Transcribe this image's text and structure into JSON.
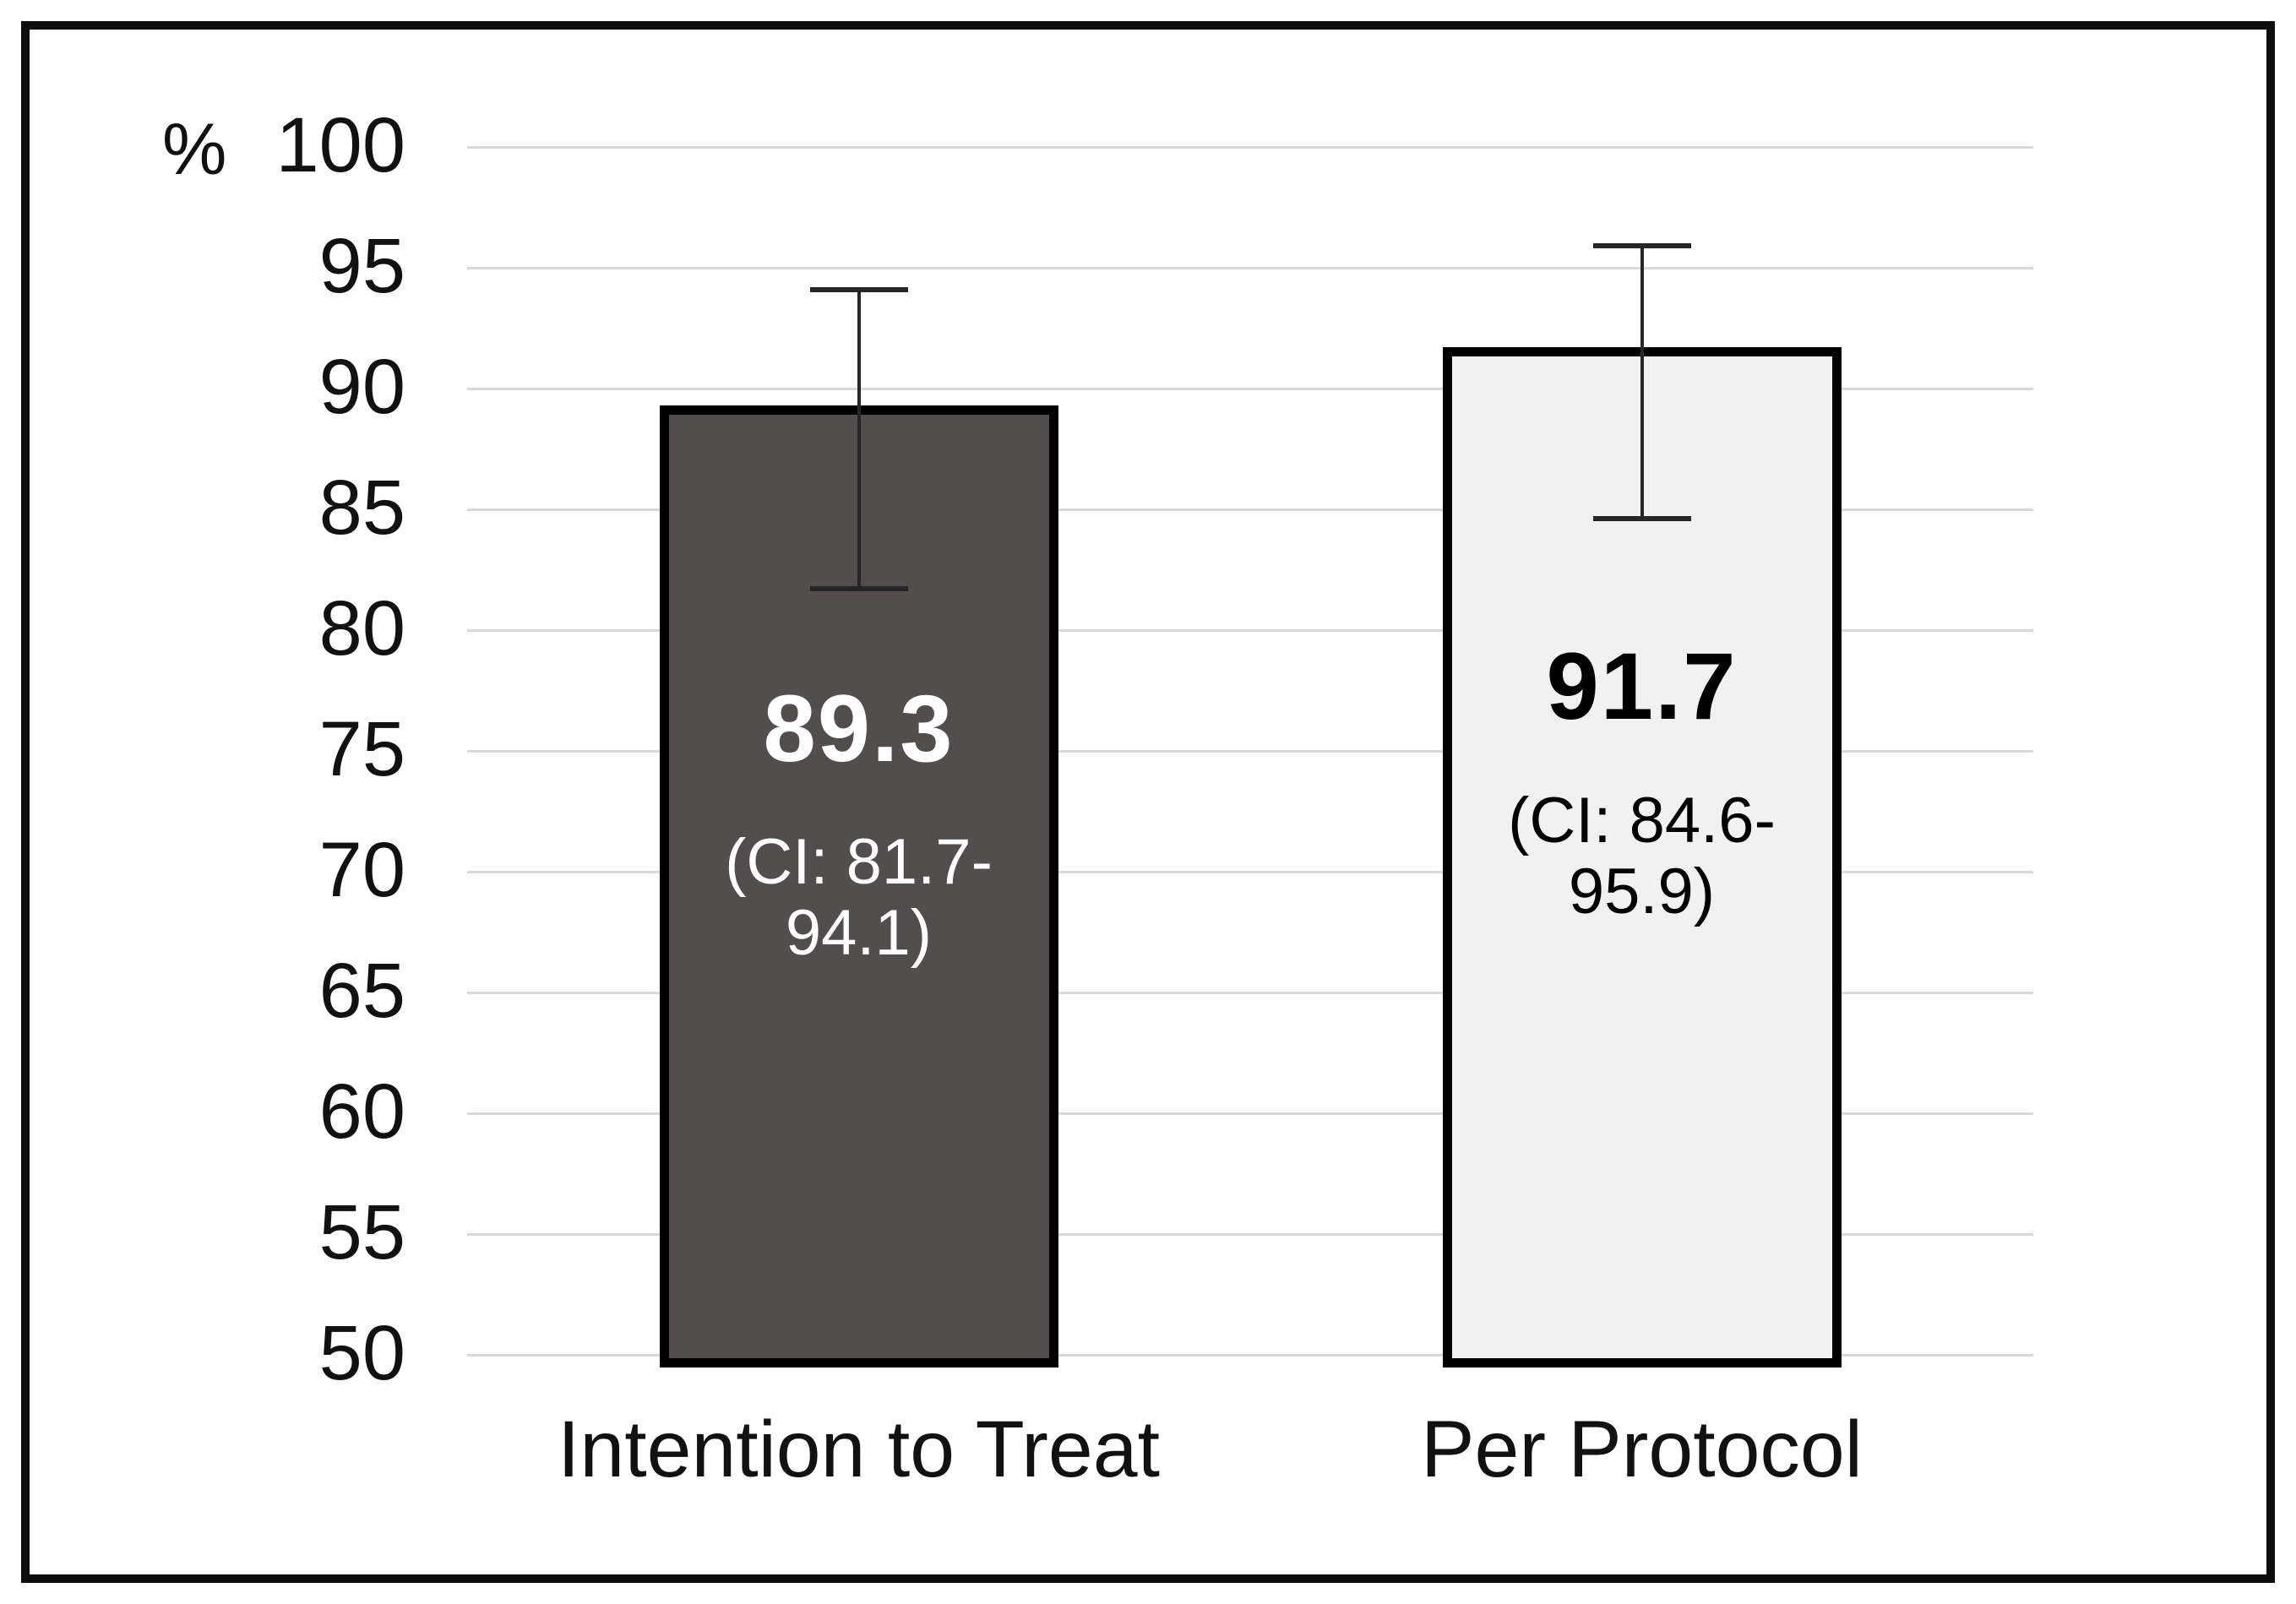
{
  "figure": {
    "background": "#ffffff",
    "border_color": "#0d0d0d"
  },
  "chart_data": {
    "type": "bar",
    "title": "",
    "xlabel": "",
    "ylabel": "%",
    "categories": [
      "Intention to Treat",
      "Per Protocol"
    ],
    "values": [
      89.3,
      91.7
    ],
    "value_labels": [
      "89.3",
      "91.7"
    ],
    "ci_labels": [
      "(CI: 81.7-94.1)",
      "(CI: 84.6-95.9)"
    ],
    "error_low": [
      81.7,
      84.6
    ],
    "error_high": [
      94.1,
      95.9
    ],
    "ylim": [
      50,
      100
    ],
    "yticks": [
      100,
      95,
      90,
      85,
      80,
      75,
      70,
      65,
      60,
      55,
      50
    ],
    "grid": true,
    "legend_position": "none",
    "bar_colors": [
      "#524e4e",
      "#f1f1f1"
    ],
    "bar_border_color": "#000000",
    "label_colors": [
      "#ffffff",
      "#000000"
    ],
    "gridline_color": "#d9d9d9",
    "error_bar_color": "#262626"
  }
}
